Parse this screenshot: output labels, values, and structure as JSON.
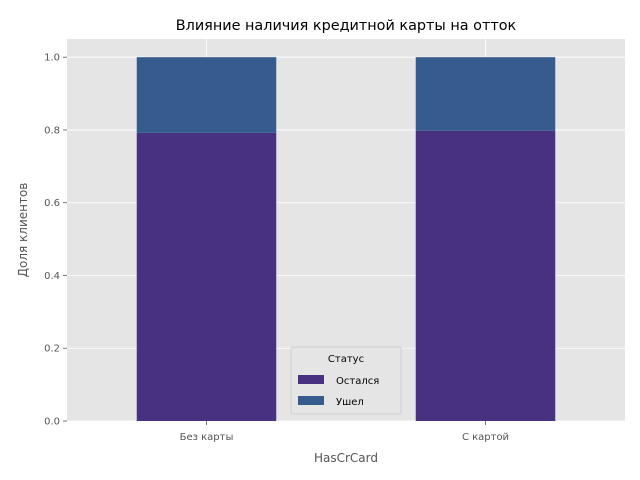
{
  "chart_data": {
    "type": "bar",
    "stacked": true,
    "title": "Влияние наличия кредитной карты на отток",
    "xlabel": "HasCrCard",
    "ylabel": "Доля клиентов",
    "categories": [
      "Без карты",
      "С картой"
    ],
    "series": [
      {
        "name": "Остался",
        "values": [
          0.792,
          0.798
        ],
        "color": "#483180"
      },
      {
        "name": "Ушел",
        "values": [
          0.208,
          0.202
        ],
        "color": "#355c8d"
      }
    ],
    "ylim": [
      0,
      1.05
    ],
    "yticks": [
      0.0,
      0.2,
      0.4,
      0.6,
      0.8,
      1.0
    ],
    "ytick_labels": [
      "0.0",
      "0.2",
      "0.4",
      "0.6",
      "0.8",
      "1.0"
    ],
    "grid": true,
    "legend": {
      "title": "Статус",
      "placement": "bottom-center"
    },
    "colors": {
      "plot_background": "#e5e5e5",
      "grid": "#ffffff",
      "text": "#555555"
    }
  }
}
